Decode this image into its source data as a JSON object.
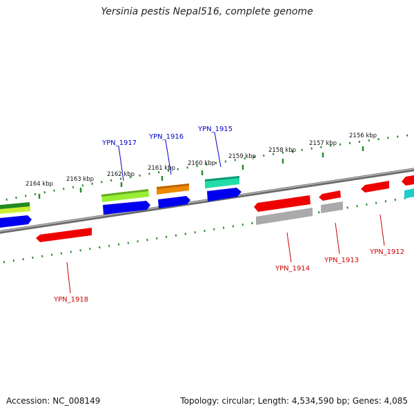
{
  "map": {
    "title": "Yersinia pestis Nepal516, complete genome",
    "accession_text": "Accession: NC_008149",
    "stats_text": "Topology: circular; Length: 4,534,590 bp; Genes: 4,085"
  },
  "kbp_ticks": [
    "2164 kbp",
    "2163 kbp",
    "2162 kbp",
    "2161 kbp",
    "2160 kbp",
    "2159 kbp",
    "2158 kbp",
    "2157 kbp",
    "2156 kbp"
  ],
  "genes": {
    "forward": [
      {
        "label": "YPN_1917",
        "color": "#0000cc"
      },
      {
        "label": "YPN_1916",
        "color": "#0000cc"
      },
      {
        "label": "YPN_1915",
        "color": "#0000cc"
      }
    ],
    "reverse": [
      {
        "label": "YPN_1918",
        "color": "#cc0000"
      },
      {
        "label": "YPN_1914",
        "color": "#cc0000"
      },
      {
        "label": "YPN_1913",
        "color": "#cc0000"
      },
      {
        "label": "YPN_1912",
        "color": "#cc0000"
      }
    ]
  },
  "colors": {
    "backbone": "#808080",
    "tick_marks": "#2a8a2a",
    "cds_forward": "#0000ee",
    "cds_reverse": "#ee0000",
    "gene_lightgreen": "#99ee33",
    "gene_orange": "#ee8800",
    "gene_teal": "#22ddaa",
    "gene_darkgreen": "#228822",
    "gene_gray": "#aaaaaa",
    "gene_cyan": "#22cccc"
  }
}
